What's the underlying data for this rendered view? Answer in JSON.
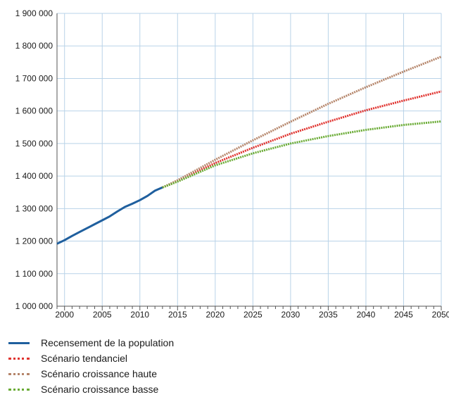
{
  "chart_data": {
    "type": "line",
    "xlim": [
      1999,
      2050
    ],
    "ylim": [
      1000000,
      1900000
    ],
    "x_ticks": [
      2000,
      2005,
      2010,
      2015,
      2020,
      2025,
      2030,
      2035,
      2040,
      2045,
      2050
    ],
    "y_ticks": [
      1000000,
      1100000,
      1200000,
      1300000,
      1400000,
      1500000,
      1600000,
      1700000,
      1800000,
      1900000
    ],
    "y_tick_labels": [
      "1 000 000",
      "1 100 000",
      "1 200 000",
      "1 300 000",
      "1 400 000",
      "1 500 000",
      "1 600 000",
      "1 700 000",
      "1 800 000",
      "1 900 000"
    ],
    "grid": true,
    "legend_position": "bottom-left",
    "series": [
      {
        "name": "Recensement de la population",
        "color": "#1f5f9e",
        "style": "solid",
        "x": [
          1999,
          2000,
          2001,
          2002,
          2003,
          2004,
          2005,
          2006,
          2007,
          2008,
          2009,
          2010,
          2011,
          2012,
          2013
        ],
        "y": [
          1192000,
          1203000,
          1216000,
          1228000,
          1240000,
          1252000,
          1264000,
          1276000,
          1291000,
          1305000,
          1315000,
          1326000,
          1339000,
          1355000,
          1365000
        ]
      },
      {
        "name": "Scénario tendanciel",
        "color": "#e0332f",
        "style": "dotted",
        "x": [
          2013,
          2015,
          2020,
          2025,
          2030,
          2035,
          2040,
          2045,
          2050
        ],
        "y": [
          1365000,
          1385000,
          1440000,
          1487000,
          1530000,
          1567000,
          1602000,
          1632000,
          1660000
        ]
      },
      {
        "name": "Scénario croissance haute",
        "color": "#b5856a",
        "style": "dotted",
        "x": [
          2013,
          2015,
          2020,
          2025,
          2030,
          2035,
          2040,
          2045,
          2050
        ],
        "y": [
          1365000,
          1387000,
          1450000,
          1510000,
          1567000,
          1622000,
          1673000,
          1721000,
          1767000
        ]
      },
      {
        "name": "Scénario croissance basse",
        "color": "#6aab35",
        "style": "dotted",
        "x": [
          2013,
          2015,
          2020,
          2025,
          2030,
          2035,
          2040,
          2045,
          2050
        ],
        "y": [
          1365000,
          1383000,
          1433000,
          1470000,
          1500000,
          1523000,
          1542000,
          1557000,
          1568000
        ]
      }
    ]
  }
}
